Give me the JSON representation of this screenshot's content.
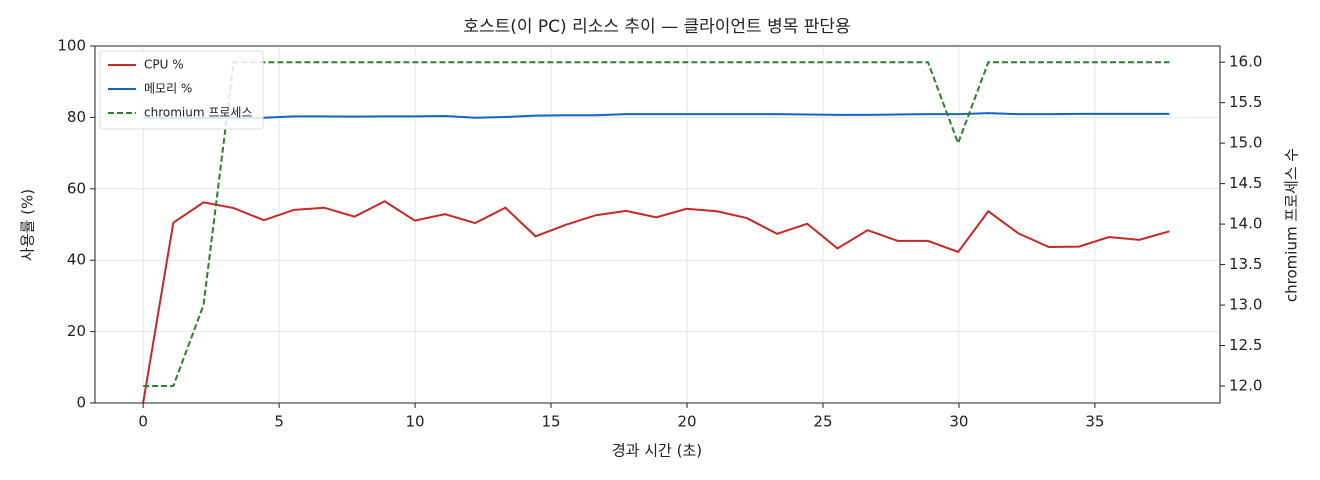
{
  "chart_data": {
    "type": "line",
    "title": "호스트(이 PC) 리소스 추이 — 클라이언트 병목 판단용",
    "x_label": "경과 시간 (초)",
    "y_label": "사용률 (%)",
    "y2_label": "chromium 프로세스 수",
    "x": [
      0,
      1.11,
      2.22,
      3.33,
      4.44,
      5.55,
      6.66,
      7.77,
      8.88,
      9.99,
      11.1,
      12.21,
      13.32,
      14.43,
      15.54,
      16.65,
      17.76,
      18.87,
      19.98,
      21.09,
      22.2,
      23.31,
      24.42,
      25.53,
      26.64,
      27.75,
      28.86,
      29.97,
      31.08,
      32.19,
      33.3,
      34.41,
      35.52,
      36.63,
      37.74
    ],
    "series": [
      {
        "name": "CPU %",
        "color": "#c62828",
        "dash": false,
        "values": [
          0,
          50.5,
          56.2,
          54.6,
          51.2,
          54.1,
          54.7,
          52.2,
          56.5,
          51.1,
          52.9,
          50.4,
          54.7,
          46.7,
          49.9,
          52.6,
          53.8,
          52.0,
          54.4,
          53.7,
          51.8,
          47.4,
          50.2,
          43.3,
          48.4,
          45.4,
          45.4,
          42.3,
          53.7,
          47.5,
          43.7,
          43.8,
          46.5,
          45.7,
          48.1
        ]
      },
      {
        "name": "메모리 %",
        "color": "#1565c0",
        "dash": false,
        "values": [
          79.8,
          79.8,
          79.8,
          79.8,
          79.9,
          80.3,
          80.3,
          80.2,
          80.3,
          80.3,
          80.4,
          79.9,
          80.1,
          80.5,
          80.6,
          80.6,
          80.9,
          80.9,
          80.9,
          80.9,
          80.9,
          80.9,
          80.8,
          80.7,
          80.7,
          80.8,
          80.9,
          80.9,
          81.2,
          80.9,
          80.9,
          81.0,
          81.0,
          81.0,
          81.0
        ]
      },
      {
        "name": "chromium 프로세스",
        "color": "#2e7d32",
        "dash": true,
        "axis": "y2",
        "values": [
          12,
          12,
          13,
          16,
          16,
          16,
          16,
          16,
          16,
          16,
          16,
          16,
          16,
          16,
          16,
          16,
          16,
          16,
          16,
          16,
          16,
          16,
          16,
          16,
          16,
          16,
          16,
          15,
          16,
          16,
          16,
          16,
          16,
          16,
          16
        ]
      }
    ],
    "xlim": [
      -1.77,
      39.6
    ],
    "xticks": [
      0,
      5,
      10,
      15,
      20,
      25,
      30,
      35
    ],
    "ylim": [
      0,
      100
    ],
    "yticks": [
      0,
      20,
      40,
      60,
      80,
      100
    ],
    "y2lim": [
      11.79,
      16.2
    ],
    "y2ticks": [
      {
        "value": 12,
        "label": "12.0"
      },
      12.5,
      {
        "value": 13,
        "label": "13.0"
      },
      13.5,
      {
        "value": 14,
        "label": "14.0"
      },
      14.5,
      {
        "value": 15,
        "label": "15.0"
      },
      15.5,
      {
        "value": 16,
        "label": "16.0"
      }
    ],
    "grid": true,
    "legend": "upper-left"
  }
}
